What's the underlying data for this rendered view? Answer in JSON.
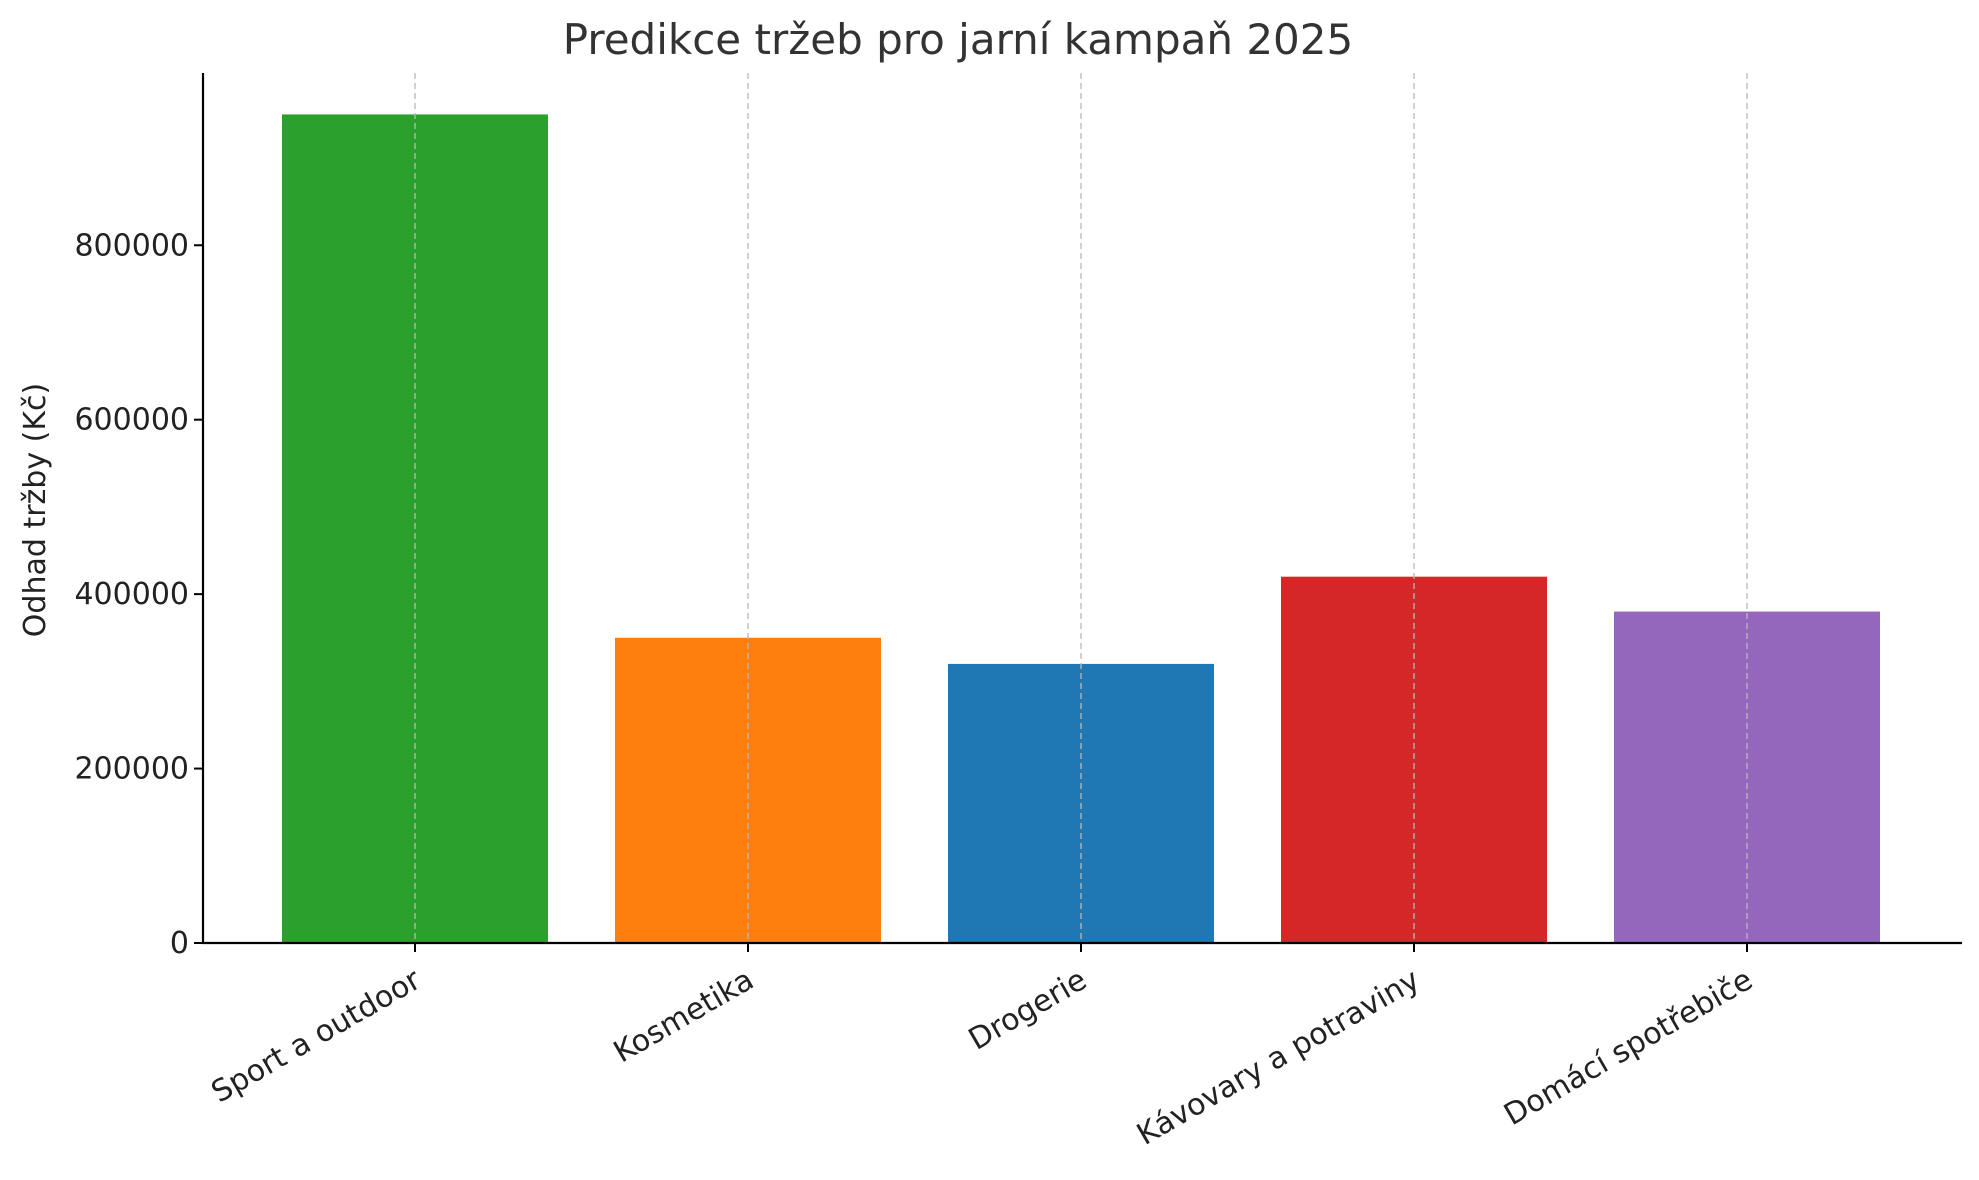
{
  "chart_data": {
    "type": "bar",
    "title": "Predikce tržeb pro jarní kampaň 2025",
    "xlabel": "",
    "ylabel": "Odhad tržby (Kč)",
    "categories": [
      "Sport a outdoor",
      "Kosmetika",
      "Drogerie",
      "Kávovary a potraviny",
      "Domácí spotřebiče"
    ],
    "values": [
      950000,
      350000,
      320000,
      420000,
      380000
    ],
    "colors": [
      "#2ca02c",
      "#ff7f0e",
      "#1f77b4",
      "#d62728",
      "#9467bd"
    ],
    "ylim": [
      0,
      997500
    ],
    "y_ticks": [
      0,
      200000,
      400000,
      600000,
      800000
    ],
    "y_tick_labels": [
      "0",
      "200000",
      "400000",
      "600000",
      "800000"
    ],
    "grid": "vertical, dashed"
  }
}
